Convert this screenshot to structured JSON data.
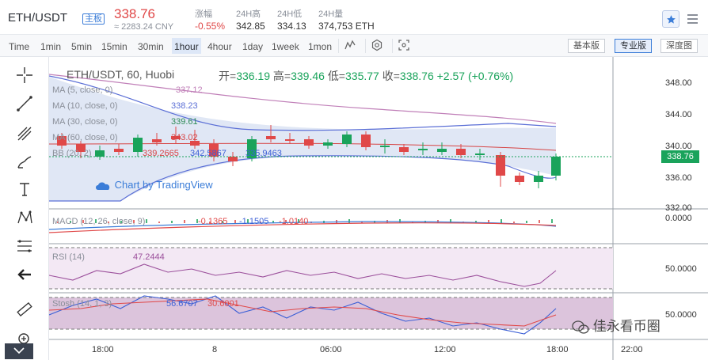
{
  "header": {
    "pair": "ETH/USDT",
    "badge": "主板",
    "last_price": "338.76",
    "cny": "≈ 2283.24 CNY",
    "stats": [
      {
        "label": "涨幅",
        "value": "-0.55%"
      },
      {
        "label": "24H高",
        "value": "342.85"
      },
      {
        "label": "24H低",
        "value": "334.13"
      },
      {
        "label": "24H量",
        "value": "374,753 ETH"
      }
    ]
  },
  "toolbar": {
    "timeframes": [
      "Time",
      "1min",
      "5min",
      "15min",
      "30min",
      "1hour",
      "4hour",
      "1day",
      "1week",
      "1mon"
    ],
    "active_timeframe": "1hour",
    "versions": [
      "基本版",
      "专业版",
      "深度图"
    ],
    "active_version": "专业版"
  },
  "legend": {
    "title": "ETH/USDT, 60, Huobi",
    "open_label": "开=",
    "open": "336.19",
    "high_label": "高=",
    "high": "339.46",
    "low_label": "低=",
    "low": "335.77",
    "close_label": "收=",
    "close": "338.76",
    "change": "+2.57 (+0.76%)",
    "ma5": {
      "label": "MA (5, close, 0)",
      "value": "337.12",
      "color": "#c07fb8"
    },
    "ma10": {
      "label": "MA (10, close, 0)",
      "value": "338.23",
      "color": "#5b6fd6"
    },
    "ma30": {
      "label": "MA (30, close, 0)",
      "value": "339.61",
      "color": "#2e8b57"
    },
    "ma60": {
      "label": "MA (60, close, 0)",
      "value": "343.02",
      "color": "#d64545"
    },
    "bb": {
      "label": "BB (20, 2)",
      "values": [
        "339.2665",
        "342.5867",
        "335.9463"
      ]
    }
  },
  "price_axis": [
    "348.00",
    "344.00",
    "340.00",
    "336.00",
    "332.00"
  ],
  "current_price_tag": "338.76",
  "watermark": "Chart by TradingView",
  "macd": {
    "label": "MACD (12, 26, close, 9)",
    "values": [
      "-0.1365",
      "-1.1505",
      "-1.0140"
    ],
    "axis": "0.0000"
  },
  "rsi": {
    "label": "RSI (14)",
    "value": "47.2444",
    "axis": "50.0000"
  },
  "stosh": {
    "label": "Stosh (14, 1, 3)",
    "values": [
      "56.6707",
      "30.6001"
    ],
    "axis": "50.0000"
  },
  "time_axis": [
    "18:00",
    "8",
    "06:00",
    "12:00",
    "18:00",
    "22:00"
  ],
  "wechat": "佳永看币圈",
  "colors": {
    "up": "#1aa35b",
    "down": "#e04848",
    "accent": "#3b7dd8"
  }
}
